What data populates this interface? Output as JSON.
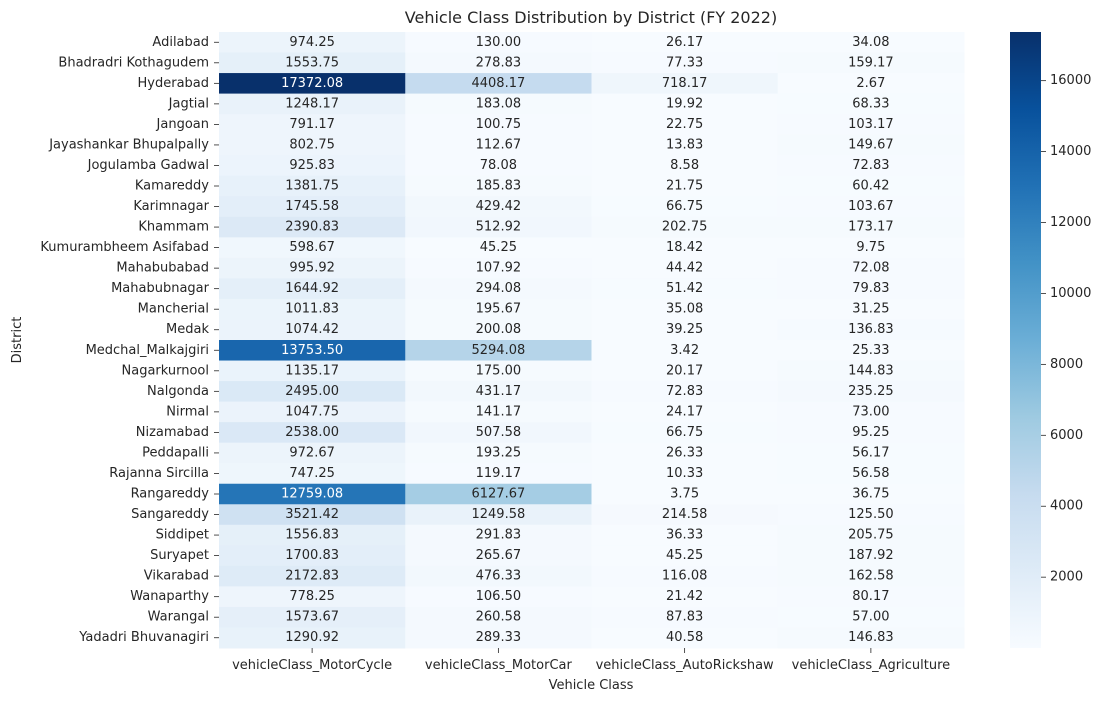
{
  "chart_data": {
    "type": "heatmap",
    "title": "Vehicle Class Distribution by District (FY 2022)",
    "xlabel": "Vehicle Class",
    "ylabel": "District",
    "columns": [
      "vehicleClass_MotorCycle",
      "vehicleClass_MotorCar",
      "vehicleClass_AutoRickshaw",
      "vehicleClass_Agriculture"
    ],
    "rows": [
      "Adilabad",
      "Bhadradri Kothagudem",
      "Hyderabad",
      "Jagtial",
      "Jangoan",
      "Jayashankar Bhupalpally",
      "Jogulamba Gadwal",
      "Kamareddy",
      "Karimnagar",
      "Khammam",
      "Kumurambheem Asifabad",
      "Mahabubabad",
      "Mahabubnagar",
      "Mancherial",
      "Medak",
      "Medchal_Malkajgiri",
      "Nagarkurnool",
      "Nalgonda",
      "Nirmal",
      "Nizamabad",
      "Peddapalli",
      "Rajanna Sircilla",
      "Rangareddy",
      "Sangareddy",
      "Siddipet",
      "Suryapet",
      "Vikarabad",
      "Wanaparthy",
      "Warangal",
      "Yadadri Bhuvanagiri"
    ],
    "values": [
      [
        974.25,
        130.0,
        26.17,
        34.08
      ],
      [
        1553.75,
        278.83,
        77.33,
        159.17
      ],
      [
        17372.08,
        4408.17,
        718.17,
        2.67
      ],
      [
        1248.17,
        183.08,
        19.92,
        68.33
      ],
      [
        791.17,
        100.75,
        22.75,
        103.17
      ],
      [
        802.75,
        112.67,
        13.83,
        149.67
      ],
      [
        925.83,
        78.08,
        8.58,
        72.83
      ],
      [
        1381.75,
        185.83,
        21.75,
        60.42
      ],
      [
        1745.58,
        429.42,
        66.75,
        103.67
      ],
      [
        2390.83,
        512.92,
        202.75,
        173.17
      ],
      [
        598.67,
        45.25,
        18.42,
        9.75
      ],
      [
        995.92,
        107.92,
        44.42,
        72.08
      ],
      [
        1644.92,
        294.08,
        51.42,
        79.83
      ],
      [
        1011.83,
        195.67,
        35.08,
        31.25
      ],
      [
        1074.42,
        200.08,
        39.25,
        136.83
      ],
      [
        13753.5,
        5294.08,
        3.42,
        25.33
      ],
      [
        1135.17,
        175.0,
        20.17,
        144.83
      ],
      [
        2495.0,
        431.17,
        72.83,
        235.25
      ],
      [
        1047.75,
        141.17,
        24.17,
        73.0
      ],
      [
        2538.0,
        507.58,
        66.75,
        95.25
      ],
      [
        972.67,
        193.25,
        26.33,
        56.17
      ],
      [
        747.25,
        119.17,
        10.33,
        56.58
      ],
      [
        12759.08,
        6127.67,
        3.75,
        36.75
      ],
      [
        3521.42,
        1249.58,
        214.58,
        125.5
      ],
      [
        1556.83,
        291.83,
        36.33,
        205.75
      ],
      [
        1700.83,
        265.67,
        45.25,
        187.92
      ],
      [
        2172.83,
        476.33,
        116.08,
        162.58
      ],
      [
        778.25,
        106.5,
        21.42,
        80.17
      ],
      [
        1573.67,
        260.58,
        87.83,
        57.0
      ],
      [
        1290.92,
        289.33,
        40.58,
        146.83
      ]
    ],
    "value_format": "2 decimals",
    "colormap": "Blues",
    "vmin": 2.67,
    "vmax": 17372.08,
    "colorbar_ticks": [
      2000,
      4000,
      6000,
      8000,
      10000,
      12000,
      14000,
      16000
    ],
    "colors": {
      "low": "#f7fbff",
      "high": "#08306b",
      "text_dark": "#262626",
      "text_light": "#ffffff"
    }
  }
}
